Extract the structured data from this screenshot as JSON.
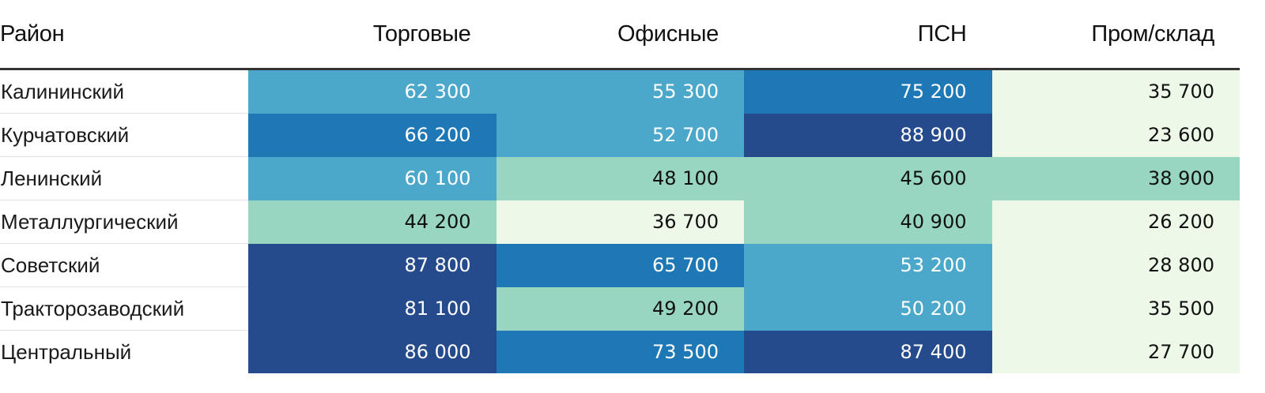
{
  "chart_data": {
    "type": "heatmap",
    "columns": [
      "Район",
      "Торговые",
      "Офисные",
      "ПСН",
      "Пром/склад"
    ],
    "rows": [
      {
        "name": "Калининский",
        "values": [
          62300,
          55300,
          75200,
          35700
        ]
      },
      {
        "name": "Курчатовский",
        "values": [
          66200,
          52700,
          88900,
          23600
        ]
      },
      {
        "name": "Ленинский",
        "values": [
          60100,
          48100,
          45600,
          38900
        ]
      },
      {
        "name": "Металлургический",
        "values": [
          44200,
          36700,
          40900,
          26200
        ]
      },
      {
        "name": "Советский",
        "values": [
          87800,
          65700,
          53200,
          28800
        ]
      },
      {
        "name": "Тракторозаводский",
        "values": [
          81100,
          49200,
          50200,
          35500
        ]
      },
      {
        "name": "Центральный",
        "values": [
          86000,
          73500,
          87400,
          27700
        ]
      }
    ],
    "color_scale": {
      "bins": [
        {
          "max": 38000,
          "color": "#edf8e9",
          "text": "#111111"
        },
        {
          "max": 50000,
          "color": "#98d6c1",
          "text": "#111111"
        },
        {
          "max": 63000,
          "color": "#4ba8ca",
          "text": "#ffffff"
        },
        {
          "max": 80000,
          "color": "#1f78b6",
          "text": "#ffffff"
        },
        {
          "max": 1000000,
          "color": "#254b8c",
          "text": "#ffffff"
        }
      ]
    }
  }
}
